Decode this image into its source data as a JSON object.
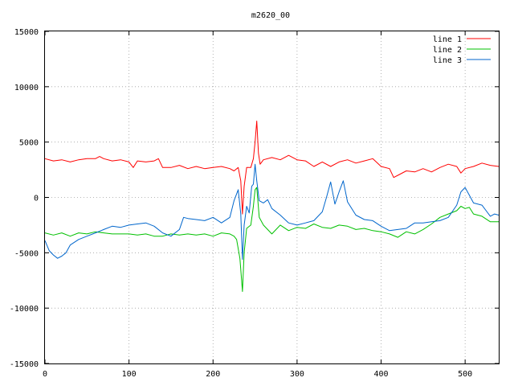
{
  "chart_data": {
    "type": "line",
    "title": "m2620_00",
    "xlabel": "",
    "ylabel": "",
    "xlim": [
      0,
      540
    ],
    "ylim": [
      -15000,
      15000
    ],
    "xticks": [
      0,
      100,
      200,
      300,
      400,
      500
    ],
    "yticks": [
      -15000,
      -10000,
      -5000,
      0,
      5000,
      10000,
      15000
    ],
    "grid": true,
    "legend_position": "top-right",
    "series": [
      {
        "name": "line 1",
        "color": "#ff0000",
        "points": [
          [
            0,
            3500
          ],
          [
            10,
            3300
          ],
          [
            20,
            3400
          ],
          [
            30,
            3200
          ],
          [
            40,
            3400
          ],
          [
            50,
            3500
          ],
          [
            60,
            3500
          ],
          [
            65,
            3700
          ],
          [
            70,
            3500
          ],
          [
            80,
            3300
          ],
          [
            90,
            3400
          ],
          [
            100,
            3200
          ],
          [
            105,
            2700
          ],
          [
            110,
            3300
          ],
          [
            120,
            3200
          ],
          [
            130,
            3300
          ],
          [
            135,
            3500
          ],
          [
            140,
            2700
          ],
          [
            150,
            2700
          ],
          [
            160,
            2900
          ],
          [
            170,
            2600
          ],
          [
            180,
            2800
          ],
          [
            190,
            2600
          ],
          [
            200,
            2700
          ],
          [
            210,
            2800
          ],
          [
            220,
            2600
          ],
          [
            225,
            2400
          ],
          [
            230,
            2700
          ],
          [
            233,
            1500
          ],
          [
            235,
            -1500
          ],
          [
            237,
            1000
          ],
          [
            240,
            2700
          ],
          [
            245,
            2700
          ],
          [
            248,
            3500
          ],
          [
            250,
            5000
          ],
          [
            252,
            6900
          ],
          [
            254,
            4000
          ],
          [
            256,
            3000
          ],
          [
            260,
            3400
          ],
          [
            270,
            3600
          ],
          [
            280,
            3400
          ],
          [
            290,
            3800
          ],
          [
            300,
            3400
          ],
          [
            310,
            3300
          ],
          [
            320,
            2800
          ],
          [
            330,
            3200
          ],
          [
            340,
            2800
          ],
          [
            350,
            3200
          ],
          [
            360,
            3400
          ],
          [
            370,
            3100
          ],
          [
            380,
            3300
          ],
          [
            390,
            3500
          ],
          [
            400,
            2800
          ],
          [
            410,
            2600
          ],
          [
            415,
            1800
          ],
          [
            420,
            2000
          ],
          [
            430,
            2400
          ],
          [
            440,
            2300
          ],
          [
            450,
            2600
          ],
          [
            460,
            2300
          ],
          [
            470,
            2700
          ],
          [
            480,
            3000
          ],
          [
            490,
            2800
          ],
          [
            495,
            2200
          ],
          [
            500,
            2600
          ],
          [
            510,
            2800
          ],
          [
            520,
            3100
          ],
          [
            530,
            2900
          ],
          [
            540,
            2800
          ]
        ]
      },
      {
        "name": "line 2",
        "color": "#00c000",
        "points": [
          [
            0,
            -3200
          ],
          [
            10,
            -3400
          ],
          [
            20,
            -3200
          ],
          [
            30,
            -3500
          ],
          [
            40,
            -3200
          ],
          [
            50,
            -3300
          ],
          [
            60,
            -3100
          ],
          [
            70,
            -3200
          ],
          [
            80,
            -3300
          ],
          [
            90,
            -3300
          ],
          [
            100,
            -3300
          ],
          [
            110,
            -3400
          ],
          [
            120,
            -3300
          ],
          [
            130,
            -3500
          ],
          [
            140,
            -3500
          ],
          [
            150,
            -3300
          ],
          [
            160,
            -3400
          ],
          [
            170,
            -3300
          ],
          [
            180,
            -3400
          ],
          [
            190,
            -3300
          ],
          [
            200,
            -3500
          ],
          [
            210,
            -3200
          ],
          [
            220,
            -3300
          ],
          [
            225,
            -3500
          ],
          [
            228,
            -3800
          ],
          [
            232,
            -5500
          ],
          [
            235,
            -8500
          ],
          [
            237,
            -5000
          ],
          [
            240,
            -2800
          ],
          [
            245,
            -2500
          ],
          [
            248,
            -800
          ],
          [
            250,
            700
          ],
          [
            252,
            900
          ],
          [
            255,
            -1800
          ],
          [
            260,
            -2500
          ],
          [
            270,
            -3300
          ],
          [
            280,
            -2500
          ],
          [
            290,
            -3000
          ],
          [
            300,
            -2700
          ],
          [
            310,
            -2800
          ],
          [
            320,
            -2400
          ],
          [
            330,
            -2700
          ],
          [
            340,
            -2800
          ],
          [
            350,
            -2500
          ],
          [
            360,
            -2600
          ],
          [
            370,
            -2900
          ],
          [
            380,
            -2800
          ],
          [
            390,
            -3000
          ],
          [
            400,
            -3100
          ],
          [
            410,
            -3300
          ],
          [
            420,
            -3600
          ],
          [
            430,
            -3100
          ],
          [
            440,
            -3300
          ],
          [
            450,
            -2900
          ],
          [
            460,
            -2400
          ],
          [
            470,
            -1800
          ],
          [
            480,
            -1500
          ],
          [
            490,
            -1200
          ],
          [
            495,
            -800
          ],
          [
            500,
            -1000
          ],
          [
            505,
            -900
          ],
          [
            510,
            -1500
          ],
          [
            520,
            -1700
          ],
          [
            530,
            -2200
          ],
          [
            540,
            -2200
          ]
        ]
      },
      {
        "name": "line 3",
        "color": "#0066cc",
        "points": [
          [
            0,
            -3900
          ],
          [
            5,
            -4800
          ],
          [
            10,
            -5200
          ],
          [
            15,
            -5500
          ],
          [
            20,
            -5300
          ],
          [
            25,
            -5000
          ],
          [
            30,
            -4300
          ],
          [
            40,
            -3800
          ],
          [
            50,
            -3500
          ],
          [
            60,
            -3200
          ],
          [
            70,
            -2900
          ],
          [
            80,
            -2600
          ],
          [
            90,
            -2700
          ],
          [
            100,
            -2500
          ],
          [
            110,
            -2400
          ],
          [
            120,
            -2300
          ],
          [
            130,
            -2600
          ],
          [
            140,
            -3200
          ],
          [
            150,
            -3500
          ],
          [
            160,
            -2900
          ],
          [
            165,
            -1800
          ],
          [
            170,
            -1900
          ],
          [
            180,
            -2000
          ],
          [
            190,
            -2100
          ],
          [
            200,
            -1800
          ],
          [
            210,
            -2300
          ],
          [
            220,
            -1800
          ],
          [
            225,
            -300
          ],
          [
            230,
            700
          ],
          [
            233,
            -1500
          ],
          [
            235,
            -5600
          ],
          [
            237,
            -2500
          ],
          [
            240,
            -800
          ],
          [
            243,
            -1400
          ],
          [
            246,
            1000
          ],
          [
            248,
            1200
          ],
          [
            250,
            3000
          ],
          [
            252,
            1500
          ],
          [
            255,
            -300
          ],
          [
            260,
            -500
          ],
          [
            265,
            -200
          ],
          [
            270,
            -1000
          ],
          [
            280,
            -1600
          ],
          [
            290,
            -2300
          ],
          [
            300,
            -2500
          ],
          [
            310,
            -2300
          ],
          [
            320,
            -2100
          ],
          [
            330,
            -1300
          ],
          [
            335,
            0
          ],
          [
            340,
            1400
          ],
          [
            345,
            -600
          ],
          [
            350,
            500
          ],
          [
            355,
            1500
          ],
          [
            360,
            -400
          ],
          [
            370,
            -1600
          ],
          [
            380,
            -2000
          ],
          [
            390,
            -2100
          ],
          [
            400,
            -2600
          ],
          [
            410,
            -3000
          ],
          [
            420,
            -2900
          ],
          [
            430,
            -2800
          ],
          [
            440,
            -2300
          ],
          [
            450,
            -2300
          ],
          [
            460,
            -2200
          ],
          [
            470,
            -2100
          ],
          [
            480,
            -1800
          ],
          [
            490,
            -700
          ],
          [
            495,
            500
          ],
          [
            500,
            900
          ],
          [
            505,
            200
          ],
          [
            510,
            -500
          ],
          [
            520,
            -700
          ],
          [
            525,
            -1200
          ],
          [
            530,
            -1700
          ],
          [
            535,
            -1500
          ],
          [
            540,
            -1600
          ]
        ]
      }
    ]
  }
}
